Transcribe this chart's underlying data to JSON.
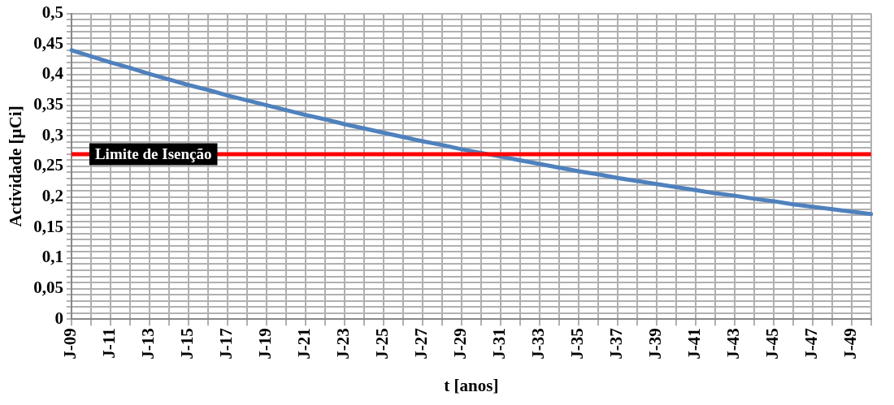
{
  "chart_data": {
    "type": "line",
    "xlabel": "t [anos]",
    "ylabel": "Actividade [µCi]",
    "categories": [
      "J-09",
      null,
      "J-11",
      null,
      "J-13",
      null,
      "J-15",
      null,
      "J-17",
      null,
      "J-19",
      null,
      "J-21",
      null,
      "J-23",
      null,
      "J-25",
      null,
      "J-27",
      null,
      "J-29",
      null,
      "J-31",
      null,
      "J-33",
      null,
      "J-35",
      null,
      "J-37",
      null,
      "J-39",
      null,
      "J-41",
      null,
      "J-43",
      null,
      "J-45",
      null,
      "J-47",
      null,
      "J-49",
      null
    ],
    "series": [
      {
        "color": "#4f81bd",
        "values": [
          0.44,
          0.43,
          0.42,
          0.411,
          0.401,
          0.392,
          0.383,
          0.375,
          0.366,
          0.358,
          0.35,
          0.342,
          0.334,
          0.327,
          0.319,
          0.312,
          0.305,
          0.298,
          0.291,
          0.285,
          0.278,
          0.272,
          0.266,
          0.26,
          0.254,
          0.248,
          0.242,
          0.237,
          0.231,
          0.226,
          0.221,
          0.216,
          0.211,
          0.206,
          0.202,
          0.197,
          0.193,
          0.188,
          0.184,
          0.18,
          0.176,
          0.172
        ]
      }
    ],
    "ylim": [
      0,
      0.5
    ],
    "yticks": [
      {
        "value": 0,
        "label": "0"
      },
      {
        "value": 0.01,
        "label": null
      },
      {
        "value": 0.02,
        "label": null
      },
      {
        "value": 0.03,
        "label": null
      },
      {
        "value": 0.04,
        "label": null
      },
      {
        "value": 0.05,
        "label": "0,05"
      },
      {
        "value": 0.06,
        "label": null
      },
      {
        "value": 0.07,
        "label": null
      },
      {
        "value": 0.08,
        "label": null
      },
      {
        "value": 0.09,
        "label": null
      },
      {
        "value": 0.1,
        "label": "0,1"
      },
      {
        "value": 0.11,
        "label": null
      },
      {
        "value": 0.12,
        "label": null
      },
      {
        "value": 0.13,
        "label": null
      },
      {
        "value": 0.14,
        "label": null
      },
      {
        "value": 0.15,
        "label": "0,15"
      },
      {
        "value": 0.16,
        "label": null
      },
      {
        "value": 0.17,
        "label": null
      },
      {
        "value": 0.18,
        "label": null
      },
      {
        "value": 0.19,
        "label": null
      },
      {
        "value": 0.2,
        "label": "0,2"
      },
      {
        "value": 0.21,
        "label": null
      },
      {
        "value": 0.22,
        "label": null
      },
      {
        "value": 0.23,
        "label": null
      },
      {
        "value": 0.24,
        "label": null
      },
      {
        "value": 0.25,
        "label": "0,25"
      },
      {
        "value": 0.26,
        "label": null
      },
      {
        "value": 0.27,
        "label": null
      },
      {
        "value": 0.28,
        "label": null
      },
      {
        "value": 0.29,
        "label": null
      },
      {
        "value": 0.3,
        "label": "0,3"
      },
      {
        "value": 0.31,
        "label": null
      },
      {
        "value": 0.32,
        "label": null
      },
      {
        "value": 0.33,
        "label": null
      },
      {
        "value": 0.34,
        "label": null
      },
      {
        "value": 0.35,
        "label": "0,35"
      },
      {
        "value": 0.36,
        "label": null
      },
      {
        "value": 0.37,
        "label": null
      },
      {
        "value": 0.38,
        "label": null
      },
      {
        "value": 0.39,
        "label": null
      },
      {
        "value": 0.4,
        "label": "0,4"
      },
      {
        "value": 0.41,
        "label": null
      },
      {
        "value": 0.42,
        "label": null
      },
      {
        "value": 0.43,
        "label": null
      },
      {
        "value": 0.44,
        "label": null
      },
      {
        "value": 0.45,
        "label": "0,45"
      },
      {
        "value": 0.46,
        "label": null
      },
      {
        "value": 0.47,
        "label": null
      },
      {
        "value": 0.48,
        "label": null
      },
      {
        "value": 0.49,
        "label": null
      },
      {
        "value": 0.5,
        "label": "0,5"
      }
    ],
    "ref_lines": [
      {
        "axis": "y",
        "value": 0.27,
        "label": "Limite de Isenção",
        "color": "#ff0000"
      }
    ],
    "grid": true,
    "legend": false,
    "marker": "none",
    "line_style": "solid"
  }
}
